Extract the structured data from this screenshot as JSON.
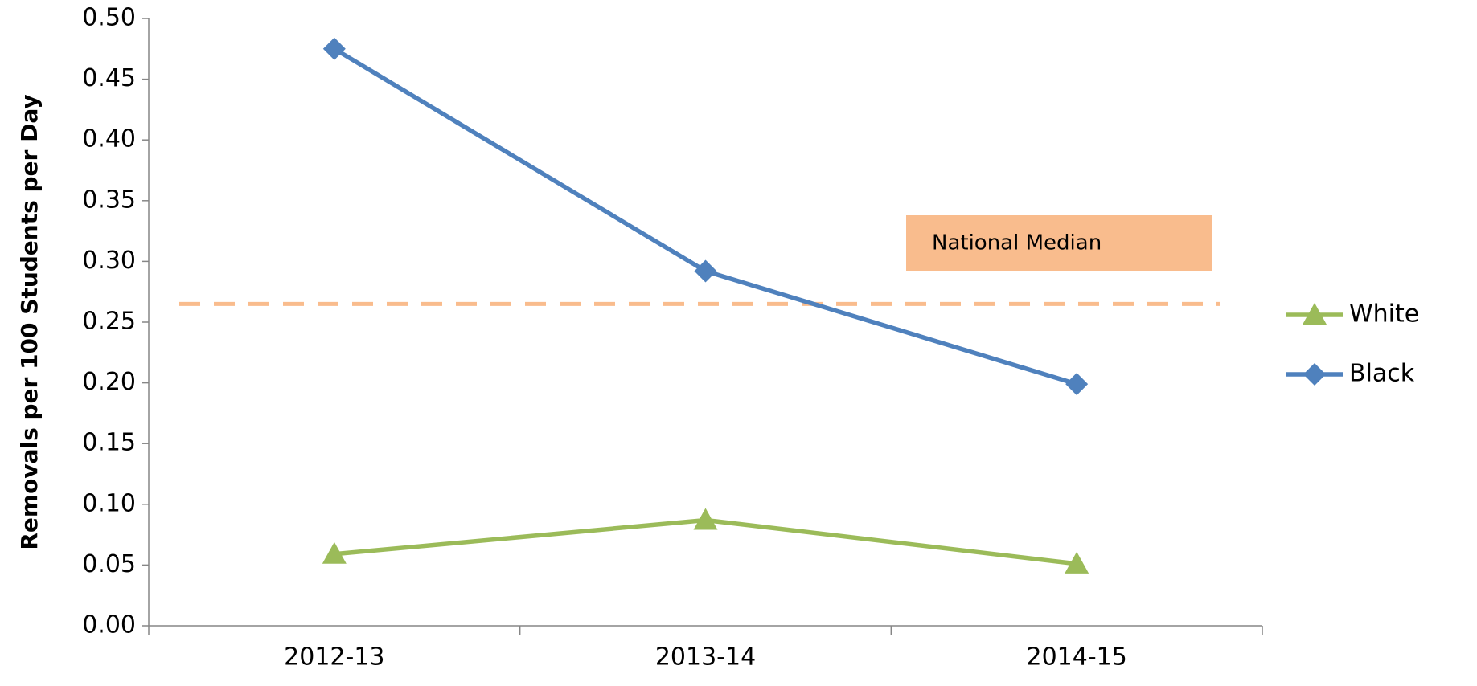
{
  "chart_data": {
    "type": "line",
    "y_label": "Removals per 100 Students per Day",
    "categories": [
      "2012-13",
      "2013-14",
      "2014-15"
    ],
    "series": [
      {
        "name": "White",
        "color": "#9bbb59",
        "marker": "triangle",
        "values": [
          0.059,
          0.087,
          0.051
        ]
      },
      {
        "name": "Black",
        "color": "#4f81bd",
        "marker": "diamond",
        "values": [
          0.475,
          0.292,
          0.199
        ]
      }
    ],
    "reference_line": {
      "name": "National Median",
      "value": 0.265,
      "color": "#f9bc8d"
    },
    "ylim": [
      0,
      0.5
    ],
    "yticks": [
      {
        "value": 0,
        "label": "0.00"
      },
      {
        "value": 0.05,
        "label": "0.05"
      },
      {
        "value": 0.1,
        "label": "0.10"
      },
      {
        "value": 0.15,
        "label": "0.15"
      },
      {
        "value": 0.2,
        "label": "0.20"
      },
      {
        "value": 0.25,
        "label": "0.25"
      },
      {
        "value": 0.3,
        "label": "0.30"
      },
      {
        "value": 0.35,
        "label": "0.35"
      },
      {
        "value": 0.4,
        "label": "0.40"
      },
      {
        "value": 0.45,
        "label": "0.45"
      },
      {
        "value": 0.5,
        "label": "0.50"
      }
    ],
    "legend": "right"
  }
}
